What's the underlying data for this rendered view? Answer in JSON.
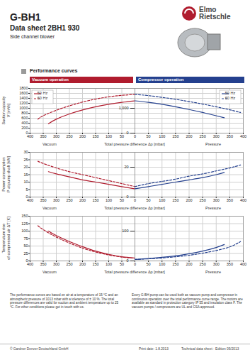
{
  "header": {
    "title": "G-BH1",
    "subtitle": "Data sheet 2BH1 930",
    "description": "Side channel blower",
    "brand": [
      "Elmo",
      "Rietschle"
    ]
  },
  "section": "Performance curves",
  "operation_headers": [
    {
      "text": "Vacuum operation",
      "color": "#b01c2e"
    },
    {
      "text": "Compressor operation",
      "color": "#24408e"
    }
  ],
  "chart_data": [
    {
      "type": "line",
      "ylabel": [
        "Suction capacity",
        "V̇ [m³/h]"
      ],
      "xlabel": "Total pressure difference Δp [mbar]",
      "ylim": [
        0,
        1800
      ],
      "yticks": [
        0,
        200,
        400,
        600,
        800,
        1000,
        1200,
        1400,
        1600,
        1800
      ],
      "grid": true,
      "panels": [
        {
          "name": "Vacuum",
          "xlim": [
            400,
            0
          ],
          "xticks": [
            400,
            350,
            300,
            250,
            200,
            150,
            100,
            50,
            0
          ],
          "legend": "top-left",
          "series": [
            {
              "name": "50 Hz",
              "color": "#b01c2e",
              "line_style": "solid",
              "x": [
                330,
                300,
                250,
                200,
                150,
                100,
                50,
                0
              ],
              "values": [
                380,
                560,
                770,
                930,
                1060,
                1160,
                1240,
                1300
              ]
            },
            {
              "name": "60 Hz",
              "color": "#b01c2e",
              "line_style": "dashed",
              "x": [
                370,
                350,
                300,
                250,
                200,
                150,
                100,
                50,
                0
              ],
              "values": [
                560,
                700,
                920,
                1100,
                1250,
                1370,
                1460,
                1520,
                1560
              ]
            }
          ]
        },
        {
          "name": "Pressure",
          "xlim": [
            0,
            400
          ],
          "xticks": [
            50,
            100,
            150,
            200,
            250,
            300,
            350,
            400
          ],
          "legend": "top-right",
          "tick_labels": "x",
          "series": [
            {
              "name": "50 Hz",
              "color": "#24408e",
              "line_style": "solid",
              "x": [
                0,
                50,
                100,
                150,
                200,
                250,
                300,
                330
              ],
              "values": [
                1300,
                1240,
                1160,
                1060,
                950,
                830,
                700,
                620
              ]
            },
            {
              "name": "60 Hz",
              "color": "#24408e",
              "line_style": "dashed",
              "x": [
                0,
                50,
                100,
                150,
                200,
                250,
                300,
                350,
                390
              ],
              "values": [
                1560,
                1510,
                1440,
                1360,
                1270,
                1170,
                1060,
                940,
                830
              ]
            }
          ]
        }
      ]
    },
    {
      "type": "line",
      "ylabel": [
        "Power consumption",
        "P at pump shaft [kW]"
      ],
      "xlabel": "Total pressure difference Δp [mbar]",
      "ylim": [
        0,
        30
      ],
      "yticks": [
        0,
        5,
        10,
        15,
        20,
        25,
        30
      ],
      "grid": true,
      "panels": [
        {
          "name": "Vacuum",
          "xlim": [
            400,
            0
          ],
          "xticks": [
            400,
            350,
            300,
            250,
            200,
            150,
            100,
            50,
            0
          ],
          "series": [
            {
              "name": "50 Hz",
              "color": "#b01c2e",
              "line_style": "solid",
              "x": [
                330,
                300,
                250,
                200,
                150,
                100,
                50,
                0
              ],
              "values": [
                17,
                15.5,
                13.5,
                11.5,
                10,
                8.5,
                7,
                5.5
              ]
            },
            {
              "name": "60 Hz",
              "color": "#b01c2e",
              "line_style": "dashed",
              "x": [
                370,
                350,
                300,
                250,
                200,
                150,
                100,
                50,
                0
              ],
              "values": [
                24,
                22.5,
                19.5,
                17,
                15,
                13,
                11,
                9,
                7
              ]
            }
          ]
        },
        {
          "name": "Pressure",
          "xlim": [
            0,
            400
          ],
          "xticks": [
            50,
            100,
            150,
            200,
            250,
            300,
            350,
            400
          ],
          "tick_labels": "x",
          "series": [
            {
              "name": "50 Hz",
              "color": "#24408e",
              "line_style": "solid",
              "x": [
                0,
                50,
                100,
                150,
                200,
                250,
                300,
                330
              ],
              "values": [
                5.5,
                7,
                8.5,
                10,
                11.5,
                13,
                15,
                16.5
              ]
            },
            {
              "name": "60 Hz",
              "color": "#24408e",
              "line_style": "dashed",
              "x": [
                0,
                50,
                100,
                150,
                200,
                250,
                300,
                350,
                390
              ],
              "values": [
                7,
                9,
                10.5,
                12,
                14,
                15.5,
                17.5,
                19.5,
                21.5
              ]
            }
          ]
        }
      ]
    },
    {
      "type": "line",
      "ylabel": [
        "Temperature rise",
        "of compressed air ΔT [K]"
      ],
      "xlabel": "Total pressure difference Δp [mbar]",
      "ylim": [
        0,
        150
      ],
      "yticks": [
        0,
        25,
        50,
        75,
        100,
        125,
        150
      ],
      "grid": true,
      "panels": [
        {
          "name": "Vacuum",
          "xlim": [
            400,
            0
          ],
          "xticks": [
            400,
            350,
            300,
            250,
            200,
            150,
            100,
            50,
            0
          ],
          "series": [
            {
              "name": "50 Hz",
              "color": "#b01c2e",
              "line_style": "solid",
              "x": [
                330,
                300,
                250,
                200,
                150,
                100,
                50,
                0
              ],
              "values": [
                100,
                85,
                65,
                48,
                33,
                22,
                14,
                10
              ]
            },
            {
              "name": "60 Hz",
              "color": "#b01c2e",
              "line_style": "dashed",
              "x": [
                370,
                350,
                300,
                250,
                200,
                150,
                100,
                50,
                0
              ],
              "values": [
                118,
                105,
                80,
                60,
                43,
                30,
                20,
                13,
                9
              ]
            }
          ]
        },
        {
          "name": "Pressure",
          "xlim": [
            0,
            400
          ],
          "xticks": [
            50,
            100,
            150,
            200,
            250,
            300,
            350,
            400
          ],
          "tick_labels": "x",
          "series": [
            {
              "name": "50 Hz",
              "color": "#24408e",
              "line_style": "solid",
              "x": [
                0,
                50,
                100,
                150,
                200,
                250,
                300,
                330
              ],
              "values": [
                5,
                8,
                12,
                17,
                24,
                33,
                45,
                55
              ]
            },
            {
              "name": "60 Hz",
              "color": "#24408e",
              "line_style": "dashed",
              "x": [
                0,
                50,
                100,
                150,
                200,
                250,
                300,
                350,
                390
              ],
              "values": [
                5,
                7,
                10,
                14,
                19,
                26,
                35,
                47,
                65
              ]
            }
          ]
        }
      ]
    }
  ],
  "notes": [
    "The performance curves are based on air at a temperature of 15 °C and an atmospheric pressure of 1013 mbar with a tolerance of ± 10 %. The total pressure differences are valid for suction and ambient temperature up to 25 °C. For other conditions please get in touch with us.",
    "Every G-BH pump can be used both as vacuum pump and compressor in continuous operation over the total performance curve range. The motors are available as standard in protection category IP 55 and insulation class F. The vacuum pumps / compressors are UL and CSA approved."
  ],
  "footer": {
    "copyright": "© Gardner Denver Deutschland GmbH",
    "print_date": "Print date: 1.8.2013",
    "edition": "Technical data sheet · Edition 05/2013"
  }
}
